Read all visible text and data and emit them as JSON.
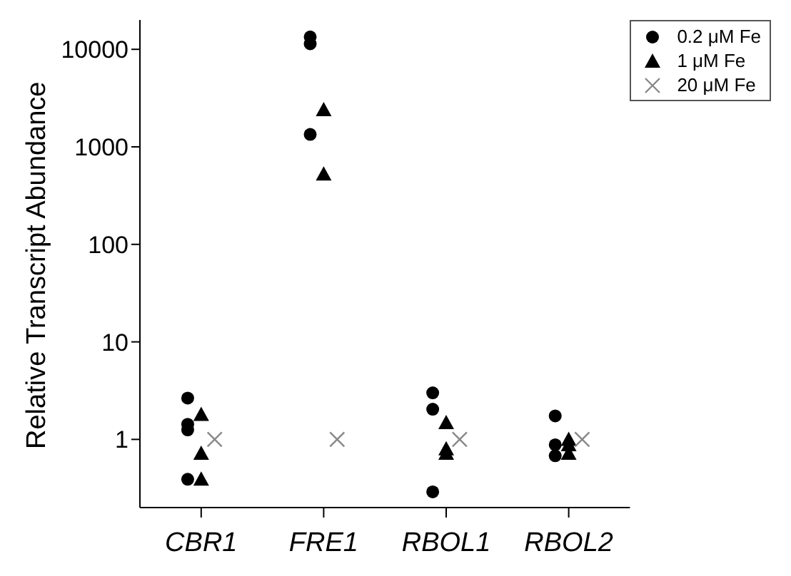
{
  "chart_data": {
    "type": "scatter",
    "ylabel": "Relative Transcript Abundance",
    "categories": [
      "CBR1",
      "FRE1",
      "RBOL1",
      "RBOL2"
    ],
    "log": "y",
    "ylim": [
      0.2,
      20000
    ],
    "yticks": [
      1,
      10,
      100,
      1000,
      10000
    ],
    "legend": "top right",
    "grid": false,
    "series": [
      {
        "name": "0.2 μM Fe",
        "color": "#000000",
        "marker": "circle",
        "x": [
          "CBR1",
          "CBR1",
          "CBR1",
          "CBR1",
          "FRE1",
          "FRE1",
          "FRE1",
          "RBOL1",
          "RBOL1",
          "RBOL1",
          "RBOL2",
          "RBOL2",
          "RBOL2"
        ],
        "values": [
          2.65,
          1.43,
          1.25,
          0.39,
          13400,
          11400,
          1340,
          3.0,
          2.04,
          0.29,
          1.74,
          0.88,
          0.68
        ]
      },
      {
        "name": "1 μM Fe",
        "color": "#000000",
        "marker": "triangle",
        "x": [
          "CBR1",
          "CBR1",
          "CBR1",
          "FRE1",
          "FRE1",
          "FRE1",
          "RBOL1",
          "RBOL1",
          "RBOL1",
          "RBOL2",
          "RBOL2",
          "RBOL2"
        ],
        "values": [
          1.8,
          0.72,
          0.39,
          null,
          2400,
          525,
          1.48,
          0.8,
          0.72,
          1.0,
          0.88,
          0.72
        ]
      },
      {
        "name": "20 μM Fe",
        "color": "#888888",
        "marker": "cross",
        "x": [
          "CBR1",
          "FRE1",
          "RBOL1",
          "RBOL2"
        ],
        "values": [
          1,
          1,
          1,
          1
        ]
      }
    ]
  }
}
